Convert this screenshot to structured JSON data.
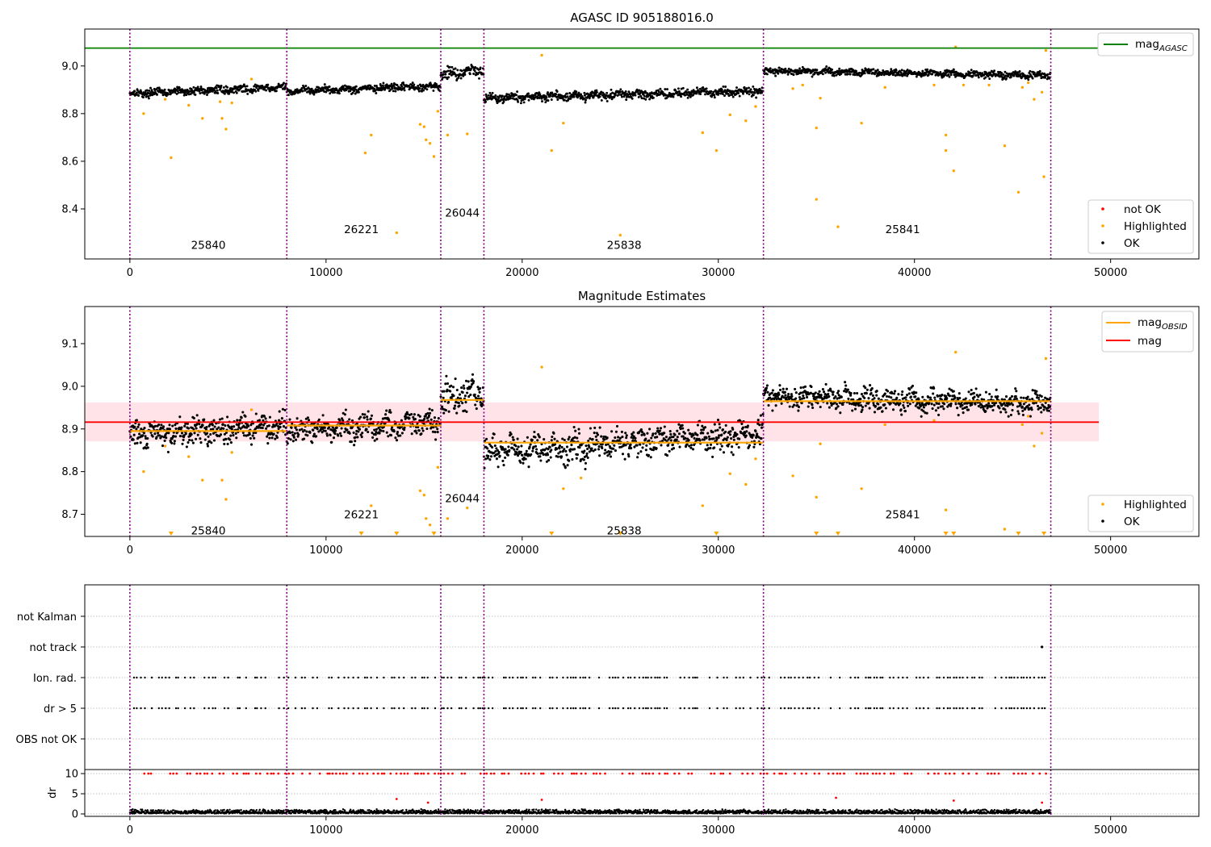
{
  "colors": {
    "ok": "#000000",
    "highlighted": "#ffa500",
    "not_ok": "#ff0000",
    "agasc_line": "#008000",
    "mag_line": "#ff0000",
    "mag_band": "#ffc0cb",
    "obsid_line": "#ffa500",
    "obsid_sep": "#800080",
    "grid": "#b0b0b0"
  },
  "chart_data": [
    {
      "type": "scatter",
      "title": "AGASC ID 905188016.0",
      "xlim": [
        -2300,
        54500
      ],
      "ylim": [
        8.19,
        9.155
      ],
      "x_ticks": [
        0,
        10000,
        20000,
        30000,
        40000,
        50000
      ],
      "y_ticks": [
        8.4,
        8.6,
        8.8,
        9.0
      ],
      "y_tick_labels": [
        "8.4",
        "8.6",
        "8.8",
        "9.0"
      ],
      "mag_agasc": 9.075,
      "mag_agasc_xmax": 49400,
      "obsid_boundaries": [
        0,
        8000,
        15850,
        18050,
        32300,
        46950
      ],
      "obsid_labels": [
        {
          "text": "25840",
          "x": 4000,
          "y": 8.25
        },
        {
          "text": "26221",
          "x": 11800,
          "y": 8.315
        },
        {
          "text": "26044",
          "x": 16950,
          "y": 8.385
        },
        {
          "text": "25838",
          "x": 25200,
          "y": 8.25
        },
        {
          "text": "25841",
          "x": 39400,
          "y": 8.315
        }
      ],
      "legend_line": {
        "label": "mag",
        "subscript": "AGASC"
      },
      "legend_points": [
        {
          "label": "not OK"
        },
        {
          "label": "Highlighted"
        },
        {
          "label": "OK"
        }
      ],
      "segments": [
        {
          "x": [
            0,
            8000
          ],
          "y": [
            8.885,
            8.91
          ],
          "spread": 0.012
        },
        {
          "x": [
            8000,
            15850
          ],
          "y": [
            8.895,
            8.915
          ],
          "spread": 0.012
        },
        {
          "x": [
            15850,
            18050
          ],
          "y": [
            8.965,
            8.985
          ],
          "spread": 0.018
        },
        {
          "x": [
            18050,
            32300
          ],
          "y": [
            8.865,
            8.895
          ],
          "spread": 0.014
        },
        {
          "x": [
            32300,
            46950
          ],
          "y": [
            8.98,
            8.96
          ],
          "spread": 0.011
        }
      ],
      "highlighted_points": [
        [
          700,
          8.8
        ],
        [
          2100,
          8.615
        ],
        [
          3700,
          8.78
        ],
        [
          4700,
          8.78
        ],
        [
          4900,
          8.735
        ],
        [
          1800,
          8.86
        ],
        [
          3000,
          8.835
        ],
        [
          4600,
          8.85
        ],
        [
          5200,
          8.845
        ],
        [
          6200,
          8.945
        ],
        [
          12000,
          8.635
        ],
        [
          12300,
          8.71
        ],
        [
          13600,
          8.3
        ],
        [
          14800,
          8.755
        ],
        [
          15000,
          8.745
        ],
        [
          15100,
          8.69
        ],
        [
          15300,
          8.675
        ],
        [
          15500,
          8.62
        ],
        [
          15700,
          8.81
        ],
        [
          16200,
          8.71
        ],
        [
          17200,
          8.715
        ],
        [
          21000,
          9.045
        ],
        [
          21500,
          8.645
        ],
        [
          22100,
          8.76
        ],
        [
          25000,
          8.29
        ],
        [
          29200,
          8.72
        ],
        [
          29900,
          8.645
        ],
        [
          30600,
          8.795
        ],
        [
          31400,
          8.77
        ],
        [
          31900,
          8.83
        ],
        [
          33800,
          8.905
        ],
        [
          34300,
          8.92
        ],
        [
          35000,
          8.74
        ],
        [
          35000,
          8.44
        ],
        [
          35200,
          8.865
        ],
        [
          36100,
          8.325
        ],
        [
          37300,
          8.76
        ],
        [
          38500,
          8.91
        ],
        [
          41000,
          8.92
        ],
        [
          41600,
          8.71
        ],
        [
          41600,
          8.645
        ],
        [
          42000,
          8.56
        ],
        [
          42100,
          9.08
        ],
        [
          42500,
          8.92
        ],
        [
          43800,
          8.92
        ],
        [
          44600,
          8.665
        ],
        [
          45300,
          8.47
        ],
        [
          45500,
          8.91
        ],
        [
          45800,
          8.93
        ],
        [
          46100,
          8.86
        ],
        [
          46600,
          8.535
        ],
        [
          46700,
          9.065
        ],
        [
          46500,
          8.89
        ]
      ]
    },
    {
      "type": "scatter",
      "title": "Magnitude Estimates",
      "xlim": [
        -2300,
        54500
      ],
      "ylim": [
        8.648,
        9.187
      ],
      "x_ticks": [
        0,
        10000,
        20000,
        30000,
        40000,
        50000
      ],
      "y_ticks": [
        8.7,
        8.8,
        8.9,
        9.0,
        9.1
      ],
      "y_tick_labels": [
        "8.7",
        "8.8",
        "8.9",
        "9.0",
        "9.1"
      ],
      "mag": 8.916,
      "mag_band": [
        8.871,
        8.962
      ],
      "mag_band_xmax": 49400,
      "obsid_boundaries": [
        0,
        8000,
        15850,
        18050,
        32300,
        46950
      ],
      "obsid_labels": [
        {
          "text": "25840",
          "x": 4000,
          "y": 8.662
        },
        {
          "text": "26221",
          "x": 11800,
          "y": 8.7
        },
        {
          "text": "26044",
          "x": 16950,
          "y": 8.738
        },
        {
          "text": "25838",
          "x": 25200,
          "y": 8.662
        },
        {
          "text": "25841",
          "x": 39400,
          "y": 8.7
        }
      ],
      "legend_lines": [
        {
          "label": "mag",
          "subscript": "OBSID"
        },
        {
          "label": "mag"
        }
      ],
      "legend_points": [
        {
          "label": "Highlighted"
        },
        {
          "label": "OK"
        }
      ],
      "obsid_mags": [
        {
          "x": [
            0,
            8000
          ],
          "mag": 8.895
        },
        {
          "x": [
            8000,
            15850
          ],
          "mag": 8.908
        },
        {
          "x": [
            15850,
            18050
          ],
          "mag": 8.968
        },
        {
          "x": [
            18050,
            32300
          ],
          "mag": 8.868
        },
        {
          "x": [
            32300,
            46950
          ],
          "mag": 8.965
        }
      ],
      "segments": [
        {
          "x": [
            0,
            8000
          ],
          "y": [
            8.885,
            8.91
          ],
          "spread": 0.022
        },
        {
          "x": [
            8000,
            15850
          ],
          "y": [
            8.895,
            8.915
          ],
          "spread": 0.022
        },
        {
          "x": [
            15850,
            18050
          ],
          "y": [
            8.965,
            8.985
          ],
          "spread": 0.03
        },
        {
          "x": [
            18050,
            32300
          ],
          "y": [
            8.845,
            8.89
          ],
          "spread": 0.026
        },
        {
          "x": [
            32300,
            46950
          ],
          "y": [
            8.975,
            8.958
          ],
          "spread": 0.02
        }
      ],
      "highlighted_points": [
        [
          700,
          8.8
        ],
        [
          1800,
          8.86
        ],
        [
          3000,
          8.835
        ],
        [
          3700,
          8.78
        ],
        [
          4700,
          8.78
        ],
        [
          4900,
          8.735
        ],
        [
          5200,
          8.845
        ],
        [
          6200,
          8.945
        ],
        [
          12300,
          8.72
        ],
        [
          14800,
          8.755
        ],
        [
          15000,
          8.745
        ],
        [
          15100,
          8.69
        ],
        [
          15300,
          8.675
        ],
        [
          15700,
          8.81
        ],
        [
          16200,
          8.69
        ],
        [
          17200,
          8.715
        ],
        [
          21000,
          9.045
        ],
        [
          22100,
          8.76
        ],
        [
          23000,
          8.785
        ],
        [
          29200,
          8.72
        ],
        [
          30600,
          8.795
        ],
        [
          31400,
          8.77
        ],
        [
          31900,
          8.83
        ],
        [
          33800,
          8.79
        ],
        [
          35000,
          8.74
        ],
        [
          35200,
          8.865
        ],
        [
          37300,
          8.76
        ],
        [
          38500,
          8.91
        ],
        [
          41000,
          8.92
        ],
        [
          41600,
          8.71
        ],
        [
          42100,
          9.08
        ],
        [
          44600,
          8.665
        ],
        [
          45500,
          8.91
        ],
        [
          45800,
          8.93
        ],
        [
          46100,
          8.86
        ],
        [
          46500,
          8.89
        ],
        [
          46700,
          9.065
        ]
      ],
      "offscale_markers": [
        2100,
        11800,
        13600,
        15500,
        21500,
        25000,
        29900,
        35000,
        36100,
        41600,
        42000,
        45300,
        46600
      ]
    },
    {
      "type": "scatter",
      "xlim": [
        -2300,
        54500
      ],
      "x_ticks": [
        0,
        10000,
        20000,
        30000,
        40000,
        50000
      ],
      "flag_rows": [
        "not Kalman",
        "not track",
        "Ion. rad.",
        "dr > 5",
        "OBS not OK"
      ],
      "flag_points": {
        "not track": [
          46500
        ],
        "Ion. rad.": "periodic",
        "dr > 5": "periodic"
      },
      "obsid_boundaries": [
        0,
        8000,
        15850,
        18050,
        32300,
        46950
      ],
      "dr_panel": {
        "ylabel": "dr",
        "ylim": [
          -0.6,
          11.0
        ],
        "y_ticks": [
          0,
          5,
          10
        ],
        "y_tick_labels": [
          "0",
          "5",
          "10"
        ],
        "clip_value": 10,
        "outliers": [
          [
            13600,
            3.7
          ],
          [
            15200,
            2.8
          ],
          [
            21000,
            3.5
          ],
          [
            36000,
            4.0
          ],
          [
            42000,
            3.3
          ],
          [
            46500,
            2.8
          ]
        ]
      }
    }
  ]
}
